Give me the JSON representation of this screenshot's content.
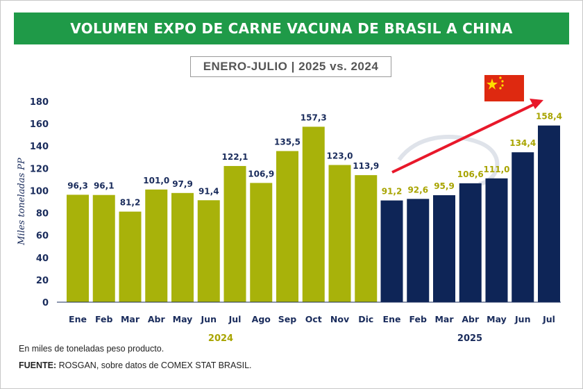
{
  "header": {
    "title": "VOLUMEN EXPO DE CARNE VACUNA DE BRASIL A CHINA",
    "subtitle": "ENERO-JULIO | 2025 vs. 2024"
  },
  "watermark": "ROSGAN",
  "colors": {
    "title_bg": "#1f9a48",
    "series_2024": "#a8b20a",
    "series_2025": "#0e2557",
    "label_2024": "#1a2c5c",
    "label_2025": "#a8a400",
    "arrow": "#e8182a",
    "flag": "#de2910",
    "flag_star": "#ffde00"
  },
  "chart_data": {
    "type": "bar",
    "title": "VOLUMEN EXPO DE CARNE VACUNA DE BRASIL A CHINA",
    "subtitle": "ENERO-JULIO | 2025 vs. 2024",
    "xlabel": "",
    "ylabel": "Miles toneladas PP",
    "ylim": [
      0,
      180
    ],
    "yticks": [
      0,
      20,
      40,
      60,
      80,
      100,
      120,
      140,
      160,
      180
    ],
    "grid": false,
    "series": [
      {
        "name": "2024",
        "categories": [
          "Ene",
          "Feb",
          "Mar",
          "Abr",
          "May",
          "Jun",
          "Jul",
          "Ago",
          "Sep",
          "Oct",
          "Nov",
          "Dic"
        ],
        "values": [
          96.3,
          96.1,
          81.2,
          101.0,
          97.9,
          91.4,
          122.1,
          106.9,
          135.5,
          157.3,
          123.0,
          113.9
        ],
        "labels": [
          "96,3",
          "96,1",
          "81,2",
          "101,0",
          "97,9",
          "91,4",
          "122,1",
          "106,9",
          "135,5",
          "157,3",
          "123,0",
          "113,9"
        ]
      },
      {
        "name": "2025",
        "categories": [
          "Ene",
          "Feb",
          "Mar",
          "Abr",
          "May",
          "Jun",
          "Jul"
        ],
        "values": [
          91.2,
          92.6,
          95.9,
          106.6,
          111.0,
          134.4,
          158.4
        ],
        "labels": [
          "91,2",
          "92,6",
          "95,9",
          "106,6",
          "111,0",
          "134,4",
          "158,4"
        ]
      }
    ],
    "annotations": [
      "Upward red arrow toward China flag over 2025 bars"
    ]
  },
  "footer": {
    "note": "En miles de toneladas peso producto.",
    "source_label": "FUENTE:",
    "source_text": " ROSGAN, sobre datos de COMEX STAT BRASIL."
  }
}
